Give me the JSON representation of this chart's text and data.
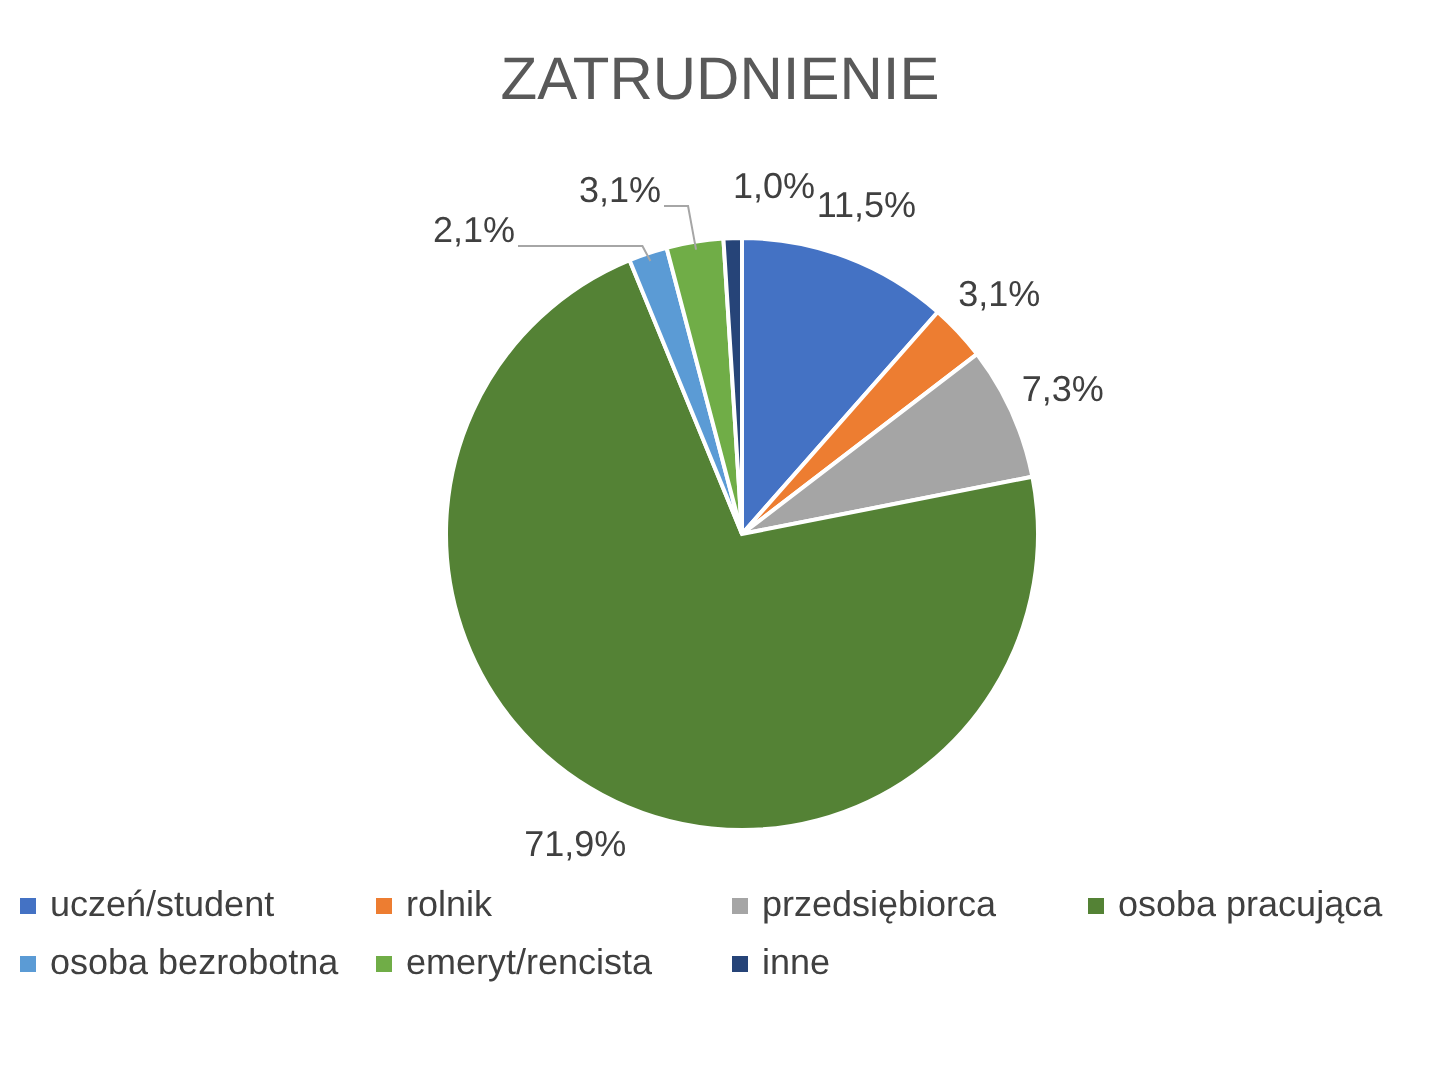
{
  "chart_data": {
    "type": "pie",
    "title": "ZATRUDNIENIE",
    "categories": [
      "uczeń/student",
      "rolnik",
      "przedsiębiorca",
      "osoba pracująca",
      "osoba bezrobotna",
      "emeryt/rencista",
      "inne"
    ],
    "values": [
      11.5,
      3.1,
      7.3,
      71.9,
      2.1,
      3.1,
      1.0
    ],
    "colors": [
      "#4472c4",
      "#ed7d31",
      "#a5a5a5",
      "#548235",
      "#5b9bd5",
      "#70ad47",
      "#264478"
    ],
    "value_labels": [
      "11,5%",
      "3,1%",
      "7,3%",
      "71,9%",
      "2,1%",
      "3,1%",
      "1,0%"
    ],
    "legend": "bottom"
  }
}
